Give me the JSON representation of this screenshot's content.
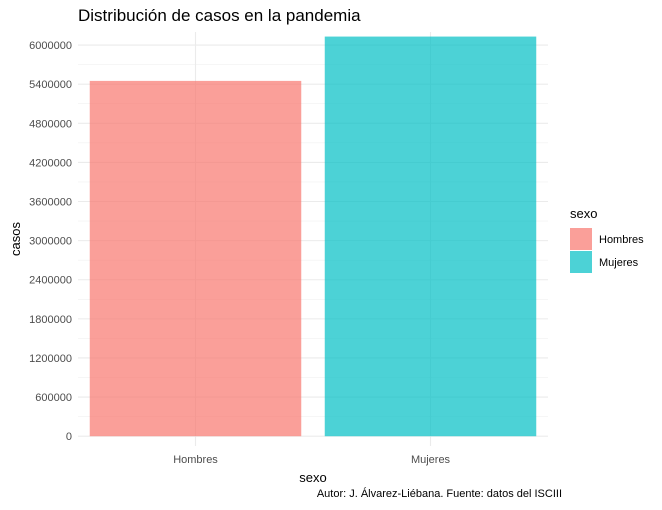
{
  "chart_data": {
    "type": "bar",
    "title": "Distribución de casos en la pandemia",
    "xlabel": "sexo",
    "ylabel": "casos",
    "categories": [
      "Hombres",
      "Mujeres"
    ],
    "values": [
      5450000,
      6130000
    ],
    "colors": [
      "#F8766D",
      "#00BFC4"
    ],
    "ylim": [
      -150000,
      6200000
    ],
    "yticks": [
      0,
      600000,
      1200000,
      1800000,
      2400000,
      3000000,
      3600000,
      4200000,
      4800000,
      5400000,
      6000000
    ],
    "ytick_labels": [
      "0",
      "600000",
      "1200000",
      "1800000",
      "2400000",
      "3000000",
      "3600000",
      "4200000",
      "4800000",
      "5400000",
      "6000000"
    ],
    "grid": true,
    "legend": {
      "title": "sexo",
      "position": "right",
      "entries": [
        "Hombres",
        "Mujeres"
      ]
    },
    "caption": "Autor: J. Álvarez-Liébana. Fuente: datos del ISCIII"
  }
}
